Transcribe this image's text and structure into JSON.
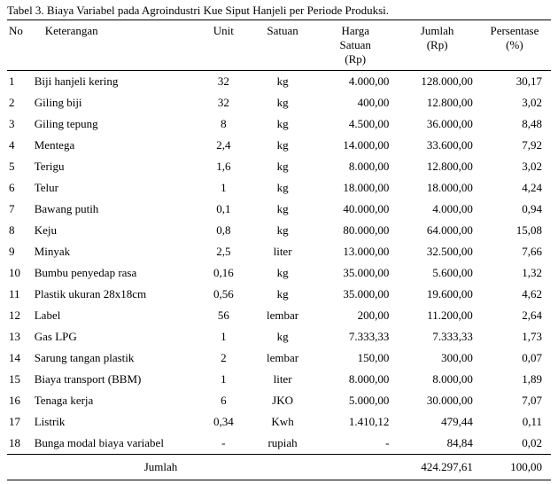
{
  "caption": "Tabel 3. Biaya Variabel pada Agroindustri Kue Siput Hanjeli per Periode Produksi.",
  "headers": {
    "no": "No",
    "ket": "Keterangan",
    "unit": "Unit",
    "satuan": "Satuan",
    "harga": "Harga",
    "harga2": "Satuan",
    "harga3": "(Rp)",
    "jumlah": "Jumlah",
    "jumlah2": "(Rp)",
    "pct": "Persentase",
    "pct2": "(%)"
  },
  "rows": [
    {
      "no": "1",
      "ket": "Biji hanjeli kering",
      "unit": "32",
      "sat": "kg",
      "harga": "4.000,00",
      "jml": "128.000,00",
      "pct": "30,17"
    },
    {
      "no": "2",
      "ket": "Giling biji",
      "unit": "32",
      "sat": "kg",
      "harga": "400,00",
      "jml": "12.800,00",
      "pct": "3,02"
    },
    {
      "no": "3",
      "ket": "Giling tepung",
      "unit": "8",
      "sat": "kg",
      "harga": "4.500,00",
      "jml": "36.000,00",
      "pct": "8,48"
    },
    {
      "no": "4",
      "ket": "Mentega",
      "unit": "2,4",
      "sat": "kg",
      "harga": "14.000,00",
      "jml": "33.600,00",
      "pct": "7,92"
    },
    {
      "no": "5",
      "ket": "Terigu",
      "unit": "1,6",
      "sat": "kg",
      "harga": "8.000,00",
      "jml": "12.800,00",
      "pct": "3,02"
    },
    {
      "no": "6",
      "ket": "Telur",
      "unit": "1",
      "sat": "kg",
      "harga": "18.000,00",
      "jml": "18.000,00",
      "pct": "4,24"
    },
    {
      "no": "7",
      "ket": "Bawang putih",
      "unit": "0,1",
      "sat": "kg",
      "harga": "40.000,00",
      "jml": "4.000,00",
      "pct": "0,94"
    },
    {
      "no": "8",
      "ket": "Keju",
      "unit": "0,8",
      "sat": "kg",
      "harga": "80.000,00",
      "jml": "64.000,00",
      "pct": "15,08"
    },
    {
      "no": "9",
      "ket": "Minyak",
      "unit": "2,5",
      "sat": "liter",
      "harga": "13.000,00",
      "jml": "32.500,00",
      "pct": "7,66"
    },
    {
      "no": "10",
      "ket": "Bumbu penyedap rasa",
      "unit": "0,16",
      "sat": "kg",
      "harga": "35.000,00",
      "jml": "5.600,00",
      "pct": "1,32"
    },
    {
      "no": "11",
      "ket": "Plastik ukuran 28x18cm",
      "unit": "0,56",
      "sat": "kg",
      "harga": "35.000,00",
      "jml": "19.600,00",
      "pct": "4,62"
    },
    {
      "no": "12",
      "ket": "Label",
      "unit": "56",
      "sat": "lembar",
      "harga": "200,00",
      "jml": "11.200,00",
      "pct": "2,64"
    },
    {
      "no": "13",
      "ket": "Gas LPG",
      "unit": "1",
      "sat": "kg",
      "harga": "7.333,33",
      "jml": "7.333,33",
      "pct": "1,73"
    },
    {
      "no": "14",
      "ket": "Sarung tangan plastik",
      "unit": "2",
      "sat": "lembar",
      "harga": "150,00",
      "jml": "300,00",
      "pct": "0,07"
    },
    {
      "no": "15",
      "ket": "Biaya transport (BBM)",
      "unit": "1",
      "sat": "liter",
      "harga": "8.000,00",
      "jml": "8.000,00",
      "pct": "1,89"
    },
    {
      "no": "16",
      "ket": "Tenaga kerja",
      "unit": "6",
      "sat": "JKO",
      "harga": "5.000,00",
      "jml": "30.000,00",
      "pct": "7,07"
    },
    {
      "no": "17",
      "ket": "Listrik",
      "unit": "0,34",
      "sat": "Kwh",
      "harga": "1.410,12",
      "jml": "479,44",
      "pct": "0,11"
    },
    {
      "no": "18",
      "ket": "Bunga modal biaya variabel",
      "unit": "-",
      "sat": "rupiah",
      "harga": "-",
      "jml": "84,84",
      "pct": "0,02"
    }
  ],
  "footer": {
    "label": "Jumlah",
    "total_jml": "424.297,61",
    "total_pct": "100,00"
  }
}
